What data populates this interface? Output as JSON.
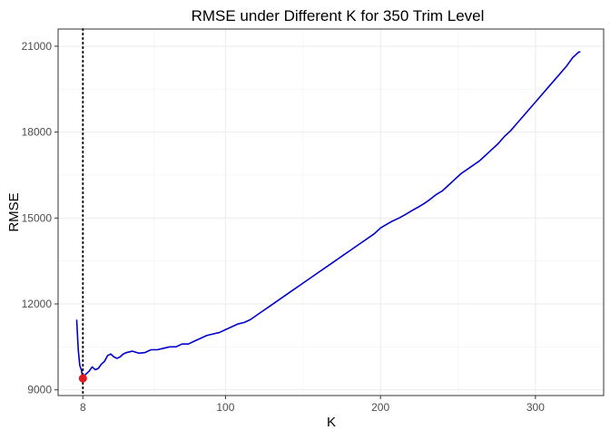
{
  "chart_data": {
    "type": "line",
    "title": "RMSE under Different K for 350 Trim Level",
    "xlabel": "K",
    "ylabel": "RMSE",
    "xlim": [
      -8,
      344
    ],
    "ylim": [
      8800,
      21600
    ],
    "x_ticks": [
      {
        "value": 8,
        "label": "8"
      },
      {
        "value": 100,
        "label": "100"
      },
      {
        "value": 200,
        "label": "200"
      },
      {
        "value": 300,
        "label": "300"
      }
    ],
    "y_ticks": [
      {
        "value": 9000,
        "label": "9000"
      },
      {
        "value": 12000,
        "label": "12000"
      },
      {
        "value": 15000,
        "label": "15000"
      },
      {
        "value": 18000,
        "label": "18000"
      },
      {
        "value": 21000,
        "label": "21000"
      }
    ],
    "grid": true,
    "series": [
      {
        "color": "#0000cd",
        "points": [
          [
            4,
            11450
          ],
          [
            5,
            10400
          ],
          [
            6,
            9850
          ],
          [
            7,
            9700
          ],
          [
            8,
            9400
          ],
          [
            9,
            9500
          ],
          [
            10,
            9550
          ],
          [
            12,
            9650
          ],
          [
            14,
            9800
          ],
          [
            16,
            9700
          ],
          [
            18,
            9750
          ],
          [
            20,
            9900
          ],
          [
            22,
            10000
          ],
          [
            24,
            10200
          ],
          [
            26,
            10250
          ],
          [
            28,
            10150
          ],
          [
            30,
            10100
          ],
          [
            32,
            10150
          ],
          [
            34,
            10250
          ],
          [
            36,
            10300
          ],
          [
            40,
            10350
          ],
          [
            44,
            10280
          ],
          [
            48,
            10300
          ],
          [
            52,
            10400
          ],
          [
            56,
            10400
          ],
          [
            60,
            10450
          ],
          [
            64,
            10500
          ],
          [
            68,
            10500
          ],
          [
            72,
            10600
          ],
          [
            76,
            10600
          ],
          [
            80,
            10700
          ],
          [
            84,
            10800
          ],
          [
            88,
            10900
          ],
          [
            92,
            10950
          ],
          [
            96,
            11000
          ],
          [
            100,
            11100
          ],
          [
            104,
            11200
          ],
          [
            108,
            11300
          ],
          [
            112,
            11350
          ],
          [
            116,
            11450
          ],
          [
            120,
            11600
          ],
          [
            124,
            11750
          ],
          [
            128,
            11900
          ],
          [
            132,
            12050
          ],
          [
            136,
            12200
          ],
          [
            140,
            12350
          ],
          [
            144,
            12500
          ],
          [
            148,
            12650
          ],
          [
            152,
            12800
          ],
          [
            156,
            12950
          ],
          [
            160,
            13100
          ],
          [
            164,
            13250
          ],
          [
            168,
            13400
          ],
          [
            172,
            13550
          ],
          [
            176,
            13700
          ],
          [
            180,
            13850
          ],
          [
            184,
            14000
          ],
          [
            188,
            14150
          ],
          [
            192,
            14300
          ],
          [
            196,
            14450
          ],
          [
            200,
            14650
          ],
          [
            204,
            14780
          ],
          [
            208,
            14900
          ],
          [
            212,
            15000
          ],
          [
            216,
            15120
          ],
          [
            220,
            15250
          ],
          [
            224,
            15370
          ],
          [
            228,
            15500
          ],
          [
            232,
            15650
          ],
          [
            236,
            15820
          ],
          [
            240,
            15950
          ],
          [
            244,
            16150
          ],
          [
            248,
            16350
          ],
          [
            252,
            16550
          ],
          [
            256,
            16700
          ],
          [
            260,
            16850
          ],
          [
            264,
            17000
          ],
          [
            268,
            17200
          ],
          [
            272,
            17400
          ],
          [
            276,
            17600
          ],
          [
            280,
            17850
          ],
          [
            284,
            18050
          ],
          [
            288,
            18300
          ],
          [
            292,
            18550
          ],
          [
            296,
            18800
          ],
          [
            300,
            19050
          ],
          [
            304,
            19300
          ],
          [
            308,
            19550
          ],
          [
            312,
            19800
          ],
          [
            316,
            20050
          ],
          [
            320,
            20300
          ],
          [
            324,
            20600
          ],
          [
            328,
            20800
          ],
          [
            329,
            20800
          ]
        ]
      }
    ],
    "vline": {
      "x": 8,
      "style": "dotted",
      "color": "#000000"
    },
    "highlight_point": {
      "x": 8,
      "y": 9400,
      "color": "#e41a1c"
    }
  }
}
